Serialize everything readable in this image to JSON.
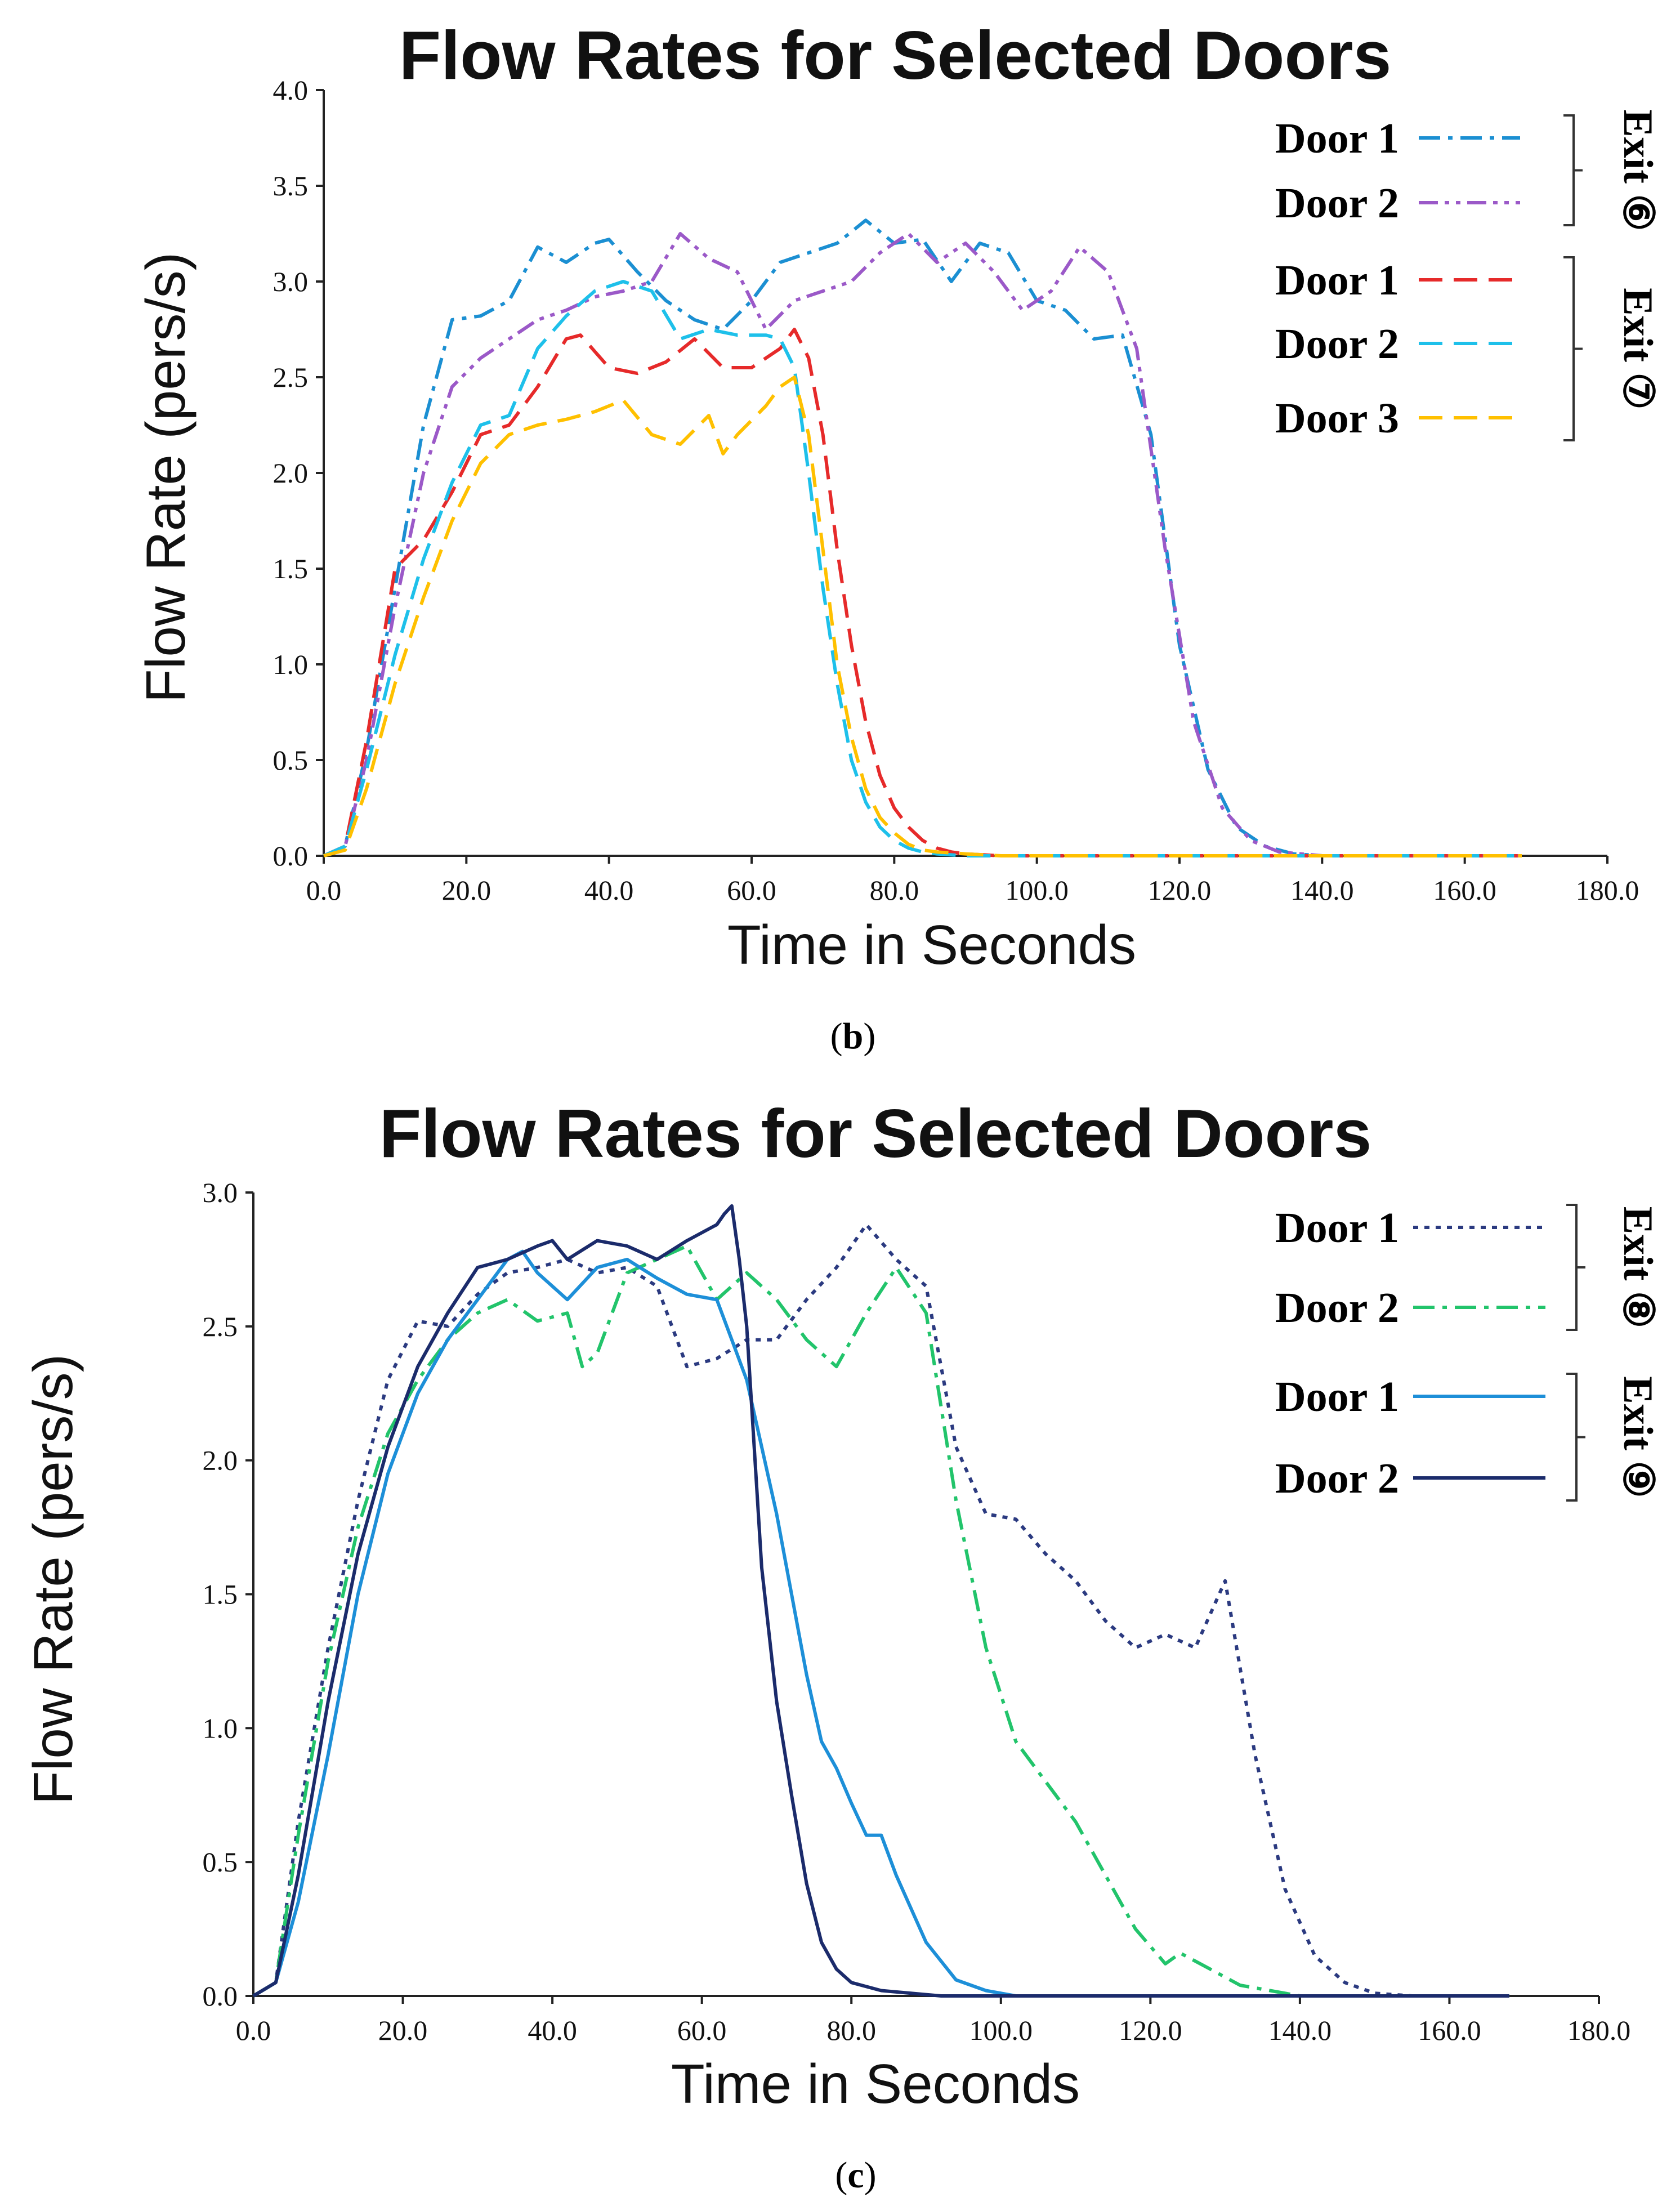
{
  "figure": "Flow Rates for Selected Doors, panels (b) and (c)",
  "chart_data": [
    {
      "type": "line",
      "title": "Flow Rates for Selected Doors",
      "xlabel": "Time in Seconds",
      "ylabel": "Flow Rate (pers/s)",
      "xlim": [
        0,
        180
      ],
      "ylim": [
        0,
        4.0
      ],
      "x_ticks": [
        "0.0",
        "20.0",
        "40.0",
        "60.0",
        "80.0",
        "100.0",
        "120.0",
        "140.0",
        "160.0",
        "180.0"
      ],
      "y_ticks": [
        "0.0",
        "0.5",
        "1.0",
        "1.5",
        "2.0",
        "2.5",
        "3.0",
        "3.5",
        "4.0"
      ],
      "caption": "(b)",
      "caption_letter": "b",
      "legend_groups": [
        {
          "label": "Exit ⑥",
          "series_indices": [
            0,
            1
          ]
        },
        {
          "label": "Exit ⑦",
          "series_indices": [
            2,
            3,
            4
          ]
        }
      ],
      "series": [
        {
          "name": "Door 1",
          "color": "#1b8fd2",
          "dash": "dash-dot",
          "x": [
            0,
            3,
            6,
            10,
            14,
            18,
            22,
            26,
            30,
            34,
            38,
            40,
            44,
            48,
            52,
            56,
            60,
            64,
            68,
            72,
            76,
            80,
            84,
            88,
            92,
            96,
            100,
            104,
            108,
            112,
            116,
            120,
            124,
            128,
            132,
            136,
            140,
            150,
            168
          ],
          "y": [
            0,
            0.05,
            0.55,
            1.4,
            2.25,
            2.8,
            2.82,
            2.9,
            3.18,
            3.1,
            3.2,
            3.22,
            3.05,
            2.9,
            2.8,
            2.75,
            2.9,
            3.1,
            3.15,
            3.2,
            3.32,
            3.2,
            3.22,
            3.0,
            3.2,
            3.15,
            2.9,
            2.85,
            2.7,
            2.72,
            2.2,
            1.1,
            0.45,
            0.15,
            0.05,
            0.01,
            0,
            0,
            0
          ]
        },
        {
          "name": "Door 2",
          "color": "#9b59c8",
          "dash": "dash-dot-dot",
          "x": [
            0,
            3,
            6,
            10,
            14,
            18,
            22,
            26,
            30,
            34,
            38,
            42,
            46,
            50,
            54,
            58,
            62,
            66,
            70,
            74,
            78,
            82,
            86,
            90,
            94,
            98,
            102,
            106,
            110,
            114,
            118,
            122,
            126,
            130,
            134,
            140,
            150,
            168
          ],
          "y": [
            0,
            0.05,
            0.5,
            1.3,
            2.0,
            2.45,
            2.6,
            2.7,
            2.8,
            2.85,
            2.92,
            2.95,
            3.0,
            3.25,
            3.12,
            3.05,
            2.75,
            2.9,
            2.95,
            3.0,
            3.15,
            3.25,
            3.1,
            3.2,
            3.05,
            2.85,
            2.95,
            3.18,
            3.05,
            2.65,
            1.6,
            0.7,
            0.25,
            0.08,
            0.02,
            0,
            0,
            0
          ]
        },
        {
          "name": "Door 1",
          "color": "#e62a2a",
          "dash": "dashed",
          "x": [
            0,
            3,
            6,
            10,
            14,
            18,
            22,
            26,
            30,
            34,
            36,
            40,
            44,
            48,
            52,
            56,
            60,
            64,
            66,
            68,
            70,
            72,
            74,
            76,
            78,
            80,
            82,
            84,
            86,
            88,
            90,
            95,
            100,
            168
          ],
          "y": [
            0,
            0.05,
            0.6,
            1.5,
            1.65,
            1.9,
            2.2,
            2.25,
            2.45,
            2.7,
            2.72,
            2.55,
            2.52,
            2.58,
            2.7,
            2.55,
            2.55,
            2.65,
            2.75,
            2.6,
            2.2,
            1.6,
            1.1,
            0.7,
            0.42,
            0.25,
            0.15,
            0.08,
            0.04,
            0.02,
            0.01,
            0,
            0,
            0
          ]
        },
        {
          "name": "Door 2",
          "color": "#1ec0ea",
          "dash": "dashed",
          "x": [
            0,
            3,
            6,
            10,
            14,
            18,
            22,
            26,
            30,
            34,
            38,
            42,
            46,
            50,
            54,
            58,
            62,
            64,
            66,
            68,
            70,
            72,
            74,
            76,
            78,
            80,
            82,
            84,
            86,
            90,
            95,
            100,
            168
          ],
          "y": [
            0,
            0.05,
            0.45,
            1.05,
            1.55,
            1.95,
            2.25,
            2.3,
            2.65,
            2.82,
            2.95,
            3.0,
            2.95,
            2.7,
            2.75,
            2.72,
            2.72,
            2.7,
            2.55,
            2.0,
            1.4,
            0.9,
            0.5,
            0.28,
            0.15,
            0.08,
            0.04,
            0.02,
            0.01,
            0,
            0,
            0,
            0
          ]
        },
        {
          "name": "Door 3",
          "color": "#ffc000",
          "dash": "dashed",
          "x": [
            0,
            3,
            6,
            10,
            14,
            18,
            22,
            26,
            30,
            34,
            38,
            42,
            46,
            50,
            54,
            56,
            58,
            62,
            64,
            66,
            68,
            70,
            72,
            74,
            76,
            78,
            80,
            82,
            84,
            86,
            90,
            95,
            100,
            168
          ],
          "y": [
            0,
            0.03,
            0.35,
            0.9,
            1.35,
            1.75,
            2.05,
            2.2,
            2.25,
            2.28,
            2.32,
            2.38,
            2.2,
            2.15,
            2.3,
            2.1,
            2.2,
            2.35,
            2.45,
            2.5,
            2.2,
            1.6,
            1.0,
            0.62,
            0.35,
            0.2,
            0.12,
            0.06,
            0.03,
            0.02,
            0.01,
            0,
            0,
            0
          ]
        }
      ]
    },
    {
      "type": "line",
      "title": "Flow Rates for Selected Doors",
      "xlabel": "Time in Seconds",
      "ylabel": "Flow Rate (pers/s)",
      "xlim": [
        0,
        180
      ],
      "ylim": [
        0,
        3.0
      ],
      "x_ticks": [
        "0.0",
        "20.0",
        "40.0",
        "60.0",
        "80.0",
        "100.0",
        "120.0",
        "140.0",
        "160.0",
        "180.0"
      ],
      "y_ticks": [
        "0.0",
        "0.5",
        "1.0",
        "1.5",
        "2.0",
        "2.5",
        "3.0"
      ],
      "caption": "(c)",
      "caption_letter": "c",
      "legend_groups": [
        {
          "label": "Exit ⑧",
          "series_indices": [
            0,
            1
          ]
        },
        {
          "label": "Exit ⑨",
          "series_indices": [
            2,
            3
          ]
        }
      ],
      "series": [
        {
          "name": "Door 1",
          "color": "#2b3a80",
          "dash": "dotted",
          "x": [
            0,
            3,
            6,
            10,
            14,
            18,
            22,
            26,
            30,
            34,
            38,
            42,
            46,
            50,
            54,
            58,
            62,
            66,
            70,
            74,
            78,
            82,
            86,
            90,
            94,
            98,
            102,
            106,
            110,
            114,
            118,
            122,
            126,
            130,
            134,
            138,
            142,
            146,
            150,
            155,
            168
          ],
          "y": [
            0,
            0.05,
            0.65,
            1.3,
            1.85,
            2.3,
            2.52,
            2.5,
            2.62,
            2.7,
            2.72,
            2.75,
            2.7,
            2.72,
            2.65,
            2.35,
            2.38,
            2.45,
            2.45,
            2.6,
            2.72,
            2.88,
            2.75,
            2.65,
            2.05,
            1.8,
            1.78,
            1.65,
            1.55,
            1.4,
            1.3,
            1.35,
            1.3,
            1.55,
            0.9,
            0.4,
            0.15,
            0.05,
            0.01,
            0,
            0
          ]
        },
        {
          "name": "Door 2",
          "color": "#22c46b",
          "dash": "dash-dot",
          "x": [
            0,
            3,
            6,
            10,
            14,
            18,
            22,
            26,
            30,
            34,
            38,
            42,
            44,
            46,
            50,
            54,
            58,
            62,
            66,
            70,
            74,
            78,
            82,
            86,
            90,
            94,
            98,
            102,
            106,
            110,
            114,
            118,
            122,
            124,
            128,
            132,
            136,
            140,
            150,
            168
          ],
          "y": [
            0,
            0.05,
            0.6,
            1.25,
            1.75,
            2.1,
            2.3,
            2.45,
            2.55,
            2.6,
            2.52,
            2.55,
            2.35,
            2.4,
            2.7,
            2.75,
            2.8,
            2.6,
            2.7,
            2.6,
            2.45,
            2.35,
            2.55,
            2.72,
            2.55,
            1.85,
            1.3,
            0.95,
            0.8,
            0.65,
            0.45,
            0.25,
            0.12,
            0.16,
            0.1,
            0.04,
            0.02,
            0,
            0,
            0
          ]
        },
        {
          "name": "Door 1",
          "color": "#1d8fd8",
          "dash": "solid",
          "x": [
            0,
            3,
            6,
            10,
            14,
            18,
            22,
            26,
            30,
            34,
            36,
            38,
            42,
            46,
            50,
            54,
            58,
            62,
            64,
            66,
            68,
            70,
            72,
            74,
            76,
            78,
            80,
            82,
            84,
            86,
            90,
            94,
            98,
            102,
            168
          ],
          "y": [
            0,
            0.05,
            0.35,
            0.9,
            1.5,
            1.95,
            2.25,
            2.45,
            2.6,
            2.75,
            2.78,
            2.7,
            2.6,
            2.72,
            2.75,
            2.68,
            2.62,
            2.6,
            2.45,
            2.3,
            2.05,
            1.8,
            1.5,
            1.2,
            0.95,
            0.85,
            0.72,
            0.6,
            0.6,
            0.45,
            0.2,
            0.06,
            0.02,
            0,
            0
          ]
        },
        {
          "name": "Door 2",
          "color": "#1b2b6b",
          "dash": "solid",
          "x": [
            0,
            3,
            6,
            10,
            14,
            18,
            22,
            26,
            30,
            34,
            38,
            40,
            42,
            46,
            50,
            54,
            58,
            62,
            63,
            64,
            65,
            66,
            68,
            70,
            72,
            74,
            76,
            78,
            80,
            84,
            88,
            92,
            168
          ],
          "y": [
            0,
            0.05,
            0.45,
            1.1,
            1.65,
            2.05,
            2.35,
            2.55,
            2.72,
            2.75,
            2.8,
            2.82,
            2.75,
            2.82,
            2.8,
            2.75,
            2.82,
            2.88,
            2.92,
            2.95,
            2.75,
            2.5,
            1.6,
            1.1,
            0.75,
            0.42,
            0.2,
            0.1,
            0.05,
            0.02,
            0.01,
            0,
            0
          ]
        }
      ]
    }
  ]
}
